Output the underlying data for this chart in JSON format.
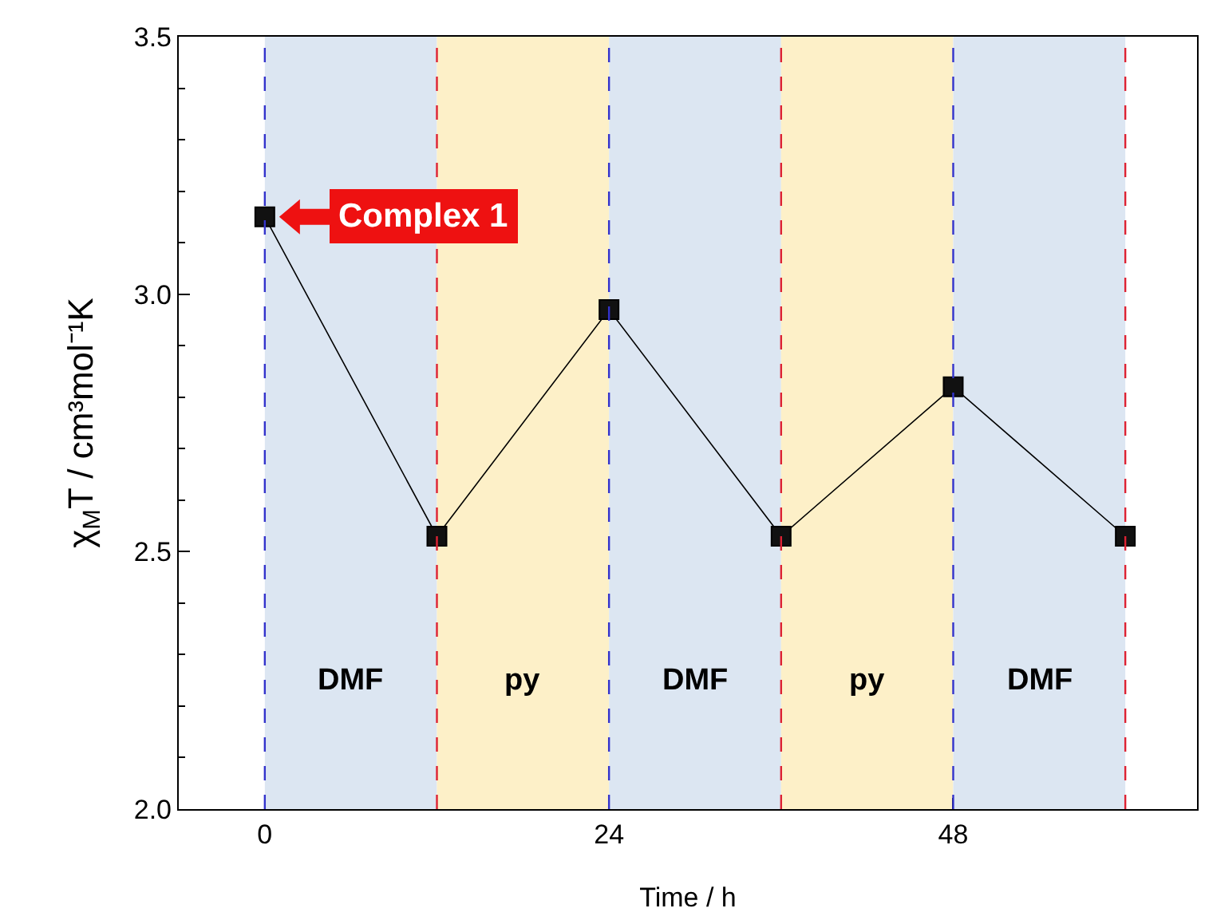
{
  "chart_data": {
    "type": "line",
    "xlabel": "Time / h",
    "ylabel": "χ$_{M}$T / cm³mol⁻¹K",
    "x": [
      0,
      12,
      24,
      36,
      48,
      60
    ],
    "series": [
      {
        "color": "#000000",
        "values": [
          3.15,
          2.53,
          2.97,
          2.53,
          2.82,
          2.53
        ]
      }
    ],
    "xlim": [
      -6,
      65
    ],
    "xticks": [
      0,
      24,
      48
    ],
    "ylim": [
      2.0,
      3.5
    ],
    "yticks": [
      {
        "value": 2.0,
        "label": "2.0"
      },
      {
        "value": 2.5,
        "label": "2.5"
      },
      {
        "value": 3.0,
        "label": "3.0"
      },
      {
        "value": 3.5,
        "label": "3.5"
      }
    ],
    "marker": "square",
    "line_style": "solid",
    "bands": [
      {
        "axis": "x",
        "from": 0,
        "to": 12,
        "label": "DMF",
        "color": "#dce6f2"
      },
      {
        "axis": "x",
        "from": 12,
        "to": 24,
        "label": "py",
        "color": "#fdf0c8"
      },
      {
        "axis": "x",
        "from": 24,
        "to": 36,
        "label": "DMF",
        "color": "#dce6f2"
      },
      {
        "axis": "x",
        "from": 36,
        "to": 48,
        "label": "py",
        "color": "#fdf0c8"
      },
      {
        "axis": "x",
        "from": 48,
        "to": 60,
        "label": "DMF",
        "color": "#dce6f2"
      }
    ],
    "ref_lines": [
      {
        "axis": "x",
        "value": 0,
        "color": "#3333cc",
        "line_style": "dashed"
      },
      {
        "axis": "x",
        "value": 12,
        "color": "#dd2233",
        "line_style": "dashed"
      },
      {
        "axis": "x",
        "value": 24,
        "color": "#3333cc",
        "line_style": "dashed"
      },
      {
        "axis": "x",
        "value": 36,
        "color": "#dd2233",
        "line_style": "dashed"
      },
      {
        "axis": "x",
        "value": 48,
        "color": "#3333cc",
        "line_style": "dashed"
      },
      {
        "axis": "x",
        "value": 60,
        "color": "#dd2233",
        "line_style": "dashed"
      }
    ],
    "annotations": [
      {
        "text": "Complex 1",
        "x": 0,
        "y": 3.15
      }
    ]
  }
}
